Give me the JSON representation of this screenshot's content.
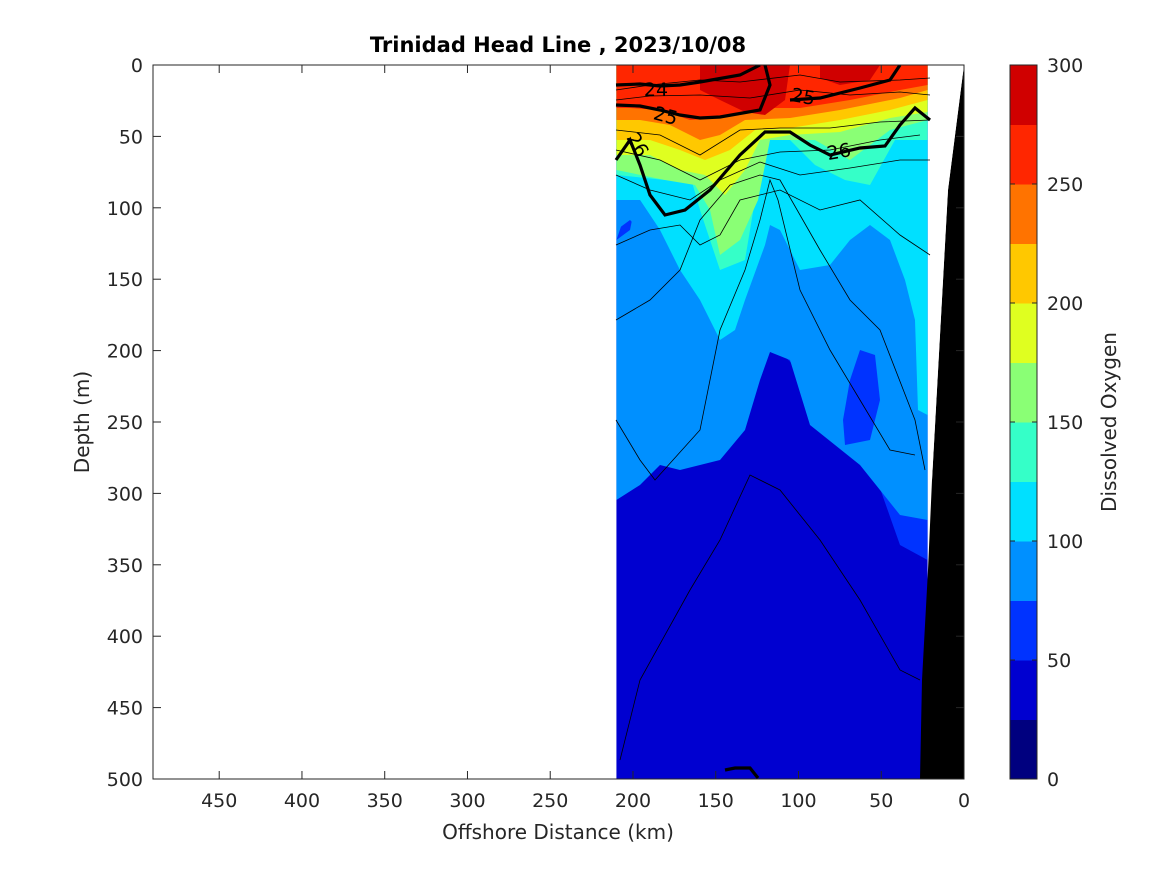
{
  "chart_data": {
    "type": "contour",
    "title": "Trinidad Head Line , 2023/10/08",
    "xlabel": "Offshore Distance (km)",
    "ylabel": "Depth (m)",
    "xlim": [
      490,
      0
    ],
    "ylim": [
      0,
      500
    ],
    "x_reversed": true,
    "y_reversed": true,
    "x_ticks": [
      450,
      400,
      350,
      300,
      250,
      200,
      150,
      100,
      50,
      0
    ],
    "y_ticks": [
      0,
      50,
      100,
      150,
      200,
      250,
      300,
      350,
      400,
      450,
      500
    ],
    "data_extent_x": [
      210,
      22
    ],
    "colorbar": {
      "label": "Dissolved Oxygen",
      "range": [
        0,
        300
      ],
      "ticks": [
        0,
        50,
        100,
        150,
        200,
        250,
        300
      ],
      "levels": [
        0,
        25,
        50,
        75,
        100,
        125,
        150,
        175,
        200,
        225,
        250,
        275,
        300
      ],
      "colors": [
        "#00007f",
        "#0000d0",
        "#0033ff",
        "#0090ff",
        "#00e0ff",
        "#35ffc8",
        "#8aff75",
        "#dfff20",
        "#ffc800",
        "#ff7300",
        "#ff2600",
        "#d00000"
      ]
    },
    "density_contour_labels": [
      "24",
      "25",
      "25",
      "26",
      "26"
    ]
  }
}
